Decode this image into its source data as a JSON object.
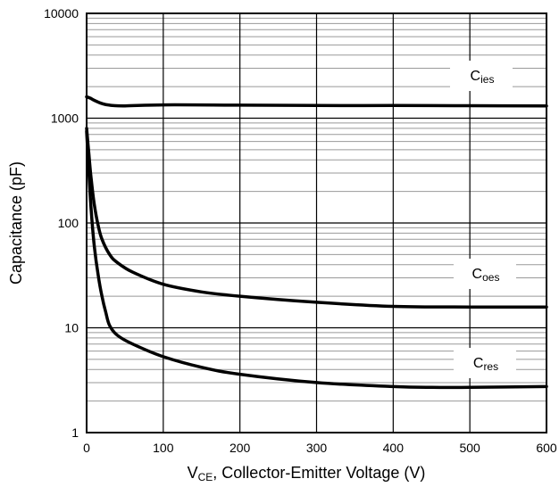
{
  "chart_data": {
    "type": "line",
    "title": "",
    "xlabel": "V",
    "xlabel_sub": "CE",
    "xlabel_rest": ", Collector-Emitter Voltage (V)",
    "ylabel": "Capacitance (pF)",
    "xlim": [
      0,
      600
    ],
    "ylim": [
      1,
      10000
    ],
    "yscale": "log",
    "grid": true,
    "x_ticks": [
      0,
      100,
      200,
      300,
      400,
      500,
      600
    ],
    "x_tick_labels": [
      "0",
      "100",
      "200",
      "300",
      "400",
      "500",
      "600"
    ],
    "y_ticks": [
      1,
      10,
      100,
      1000,
      10000
    ],
    "y_tick_labels": [
      "1",
      "10",
      "100",
      "1000",
      "10000"
    ],
    "series": [
      {
        "name": "Cies",
        "label_main": "C",
        "label_sub": "ies",
        "x": [
          0,
          5,
          10,
          20,
          30,
          50,
          100,
          200,
          300,
          400,
          500,
          600
        ],
        "y": [
          1600,
          1550,
          1480,
          1380,
          1330,
          1310,
          1340,
          1330,
          1320,
          1320,
          1315,
          1310
        ]
      },
      {
        "name": "Coes",
        "label_main": "C",
        "label_sub": "oes",
        "x": [
          0,
          3,
          6,
          10,
          15,
          20,
          30,
          40,
          60,
          100,
          150,
          200,
          300,
          400,
          500,
          600
        ],
        "y": [
          800,
          450,
          260,
          150,
          95,
          70,
          50,
          42,
          34,
          26,
          22,
          20,
          17.5,
          16,
          15.8,
          15.8
        ]
      },
      {
        "name": "Cres",
        "label_main": "C",
        "label_sub": "res",
        "x": [
          0,
          3,
          6,
          10,
          15,
          20,
          25,
          30,
          40,
          60,
          100,
          150,
          200,
          300,
          400,
          450,
          500,
          600
        ],
        "y": [
          750,
          300,
          130,
          60,
          32,
          20,
          14,
          10.5,
          8.5,
          7,
          5.3,
          4.2,
          3.6,
          3.0,
          2.75,
          2.7,
          2.7,
          2.75
        ]
      }
    ]
  }
}
